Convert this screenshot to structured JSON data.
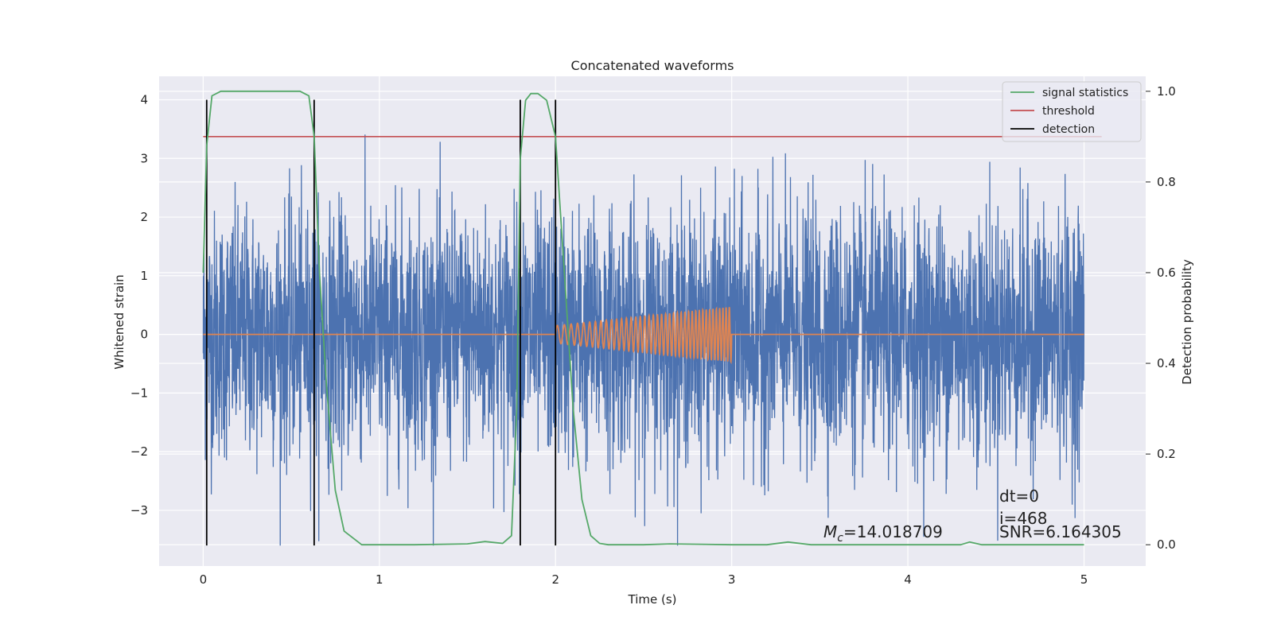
{
  "chart_data": {
    "type": "line",
    "title": "Concatenated waveforms",
    "xlabel": "Time (s)",
    "ylabel": "Whitened strain",
    "ylabel_right": "Detection probability",
    "xlim": [
      -0.25,
      5.35
    ],
    "ylim": [
      -3.95,
      4.4
    ],
    "ylim_right": [
      -0.047,
      1.033
    ],
    "x_ticks": [
      0,
      1,
      2,
      3,
      4,
      5
    ],
    "y_ticks": [
      -3,
      -2,
      -1,
      0,
      1,
      2,
      3,
      4
    ],
    "y_ticks_right": [
      0.0,
      0.2,
      0.4,
      0.6,
      0.8,
      1.0
    ],
    "y_tick_labels": [
      "−3",
      "−2",
      "−1",
      "0",
      "1",
      "2",
      "3",
      "4"
    ],
    "y_tick_labels_right": [
      "0.0",
      "0.2",
      "0.4",
      "0.6",
      "0.8",
      "1.0"
    ],
    "grid": true,
    "legend_position": "top-right",
    "colors": {
      "strain": "#4c72b0",
      "template": "#dd8452",
      "signal_statistics": "#55a868",
      "threshold": "#c44e52",
      "detection": "#000000",
      "background": "#eaeaf2",
      "grid": "#ffffff"
    },
    "strain": {
      "x_range": [
        0,
        5
      ],
      "typical_amplitude": 1.3,
      "max": 3.65,
      "min": -3.6
    },
    "template": {
      "baseline": 0,
      "chirp_start": 2.0,
      "chirp_end": 3.0,
      "amplitude_start": 0.15,
      "amplitude_end": 0.47
    },
    "signal_statistics": {
      "name": "signal statistics",
      "x": [
        0.0,
        0.02,
        0.05,
        0.1,
        0.2,
        0.4,
        0.55,
        0.6,
        0.63,
        0.66,
        0.7,
        0.75,
        0.8,
        0.9,
        1.2,
        1.5,
        1.6,
        1.7,
        1.75,
        1.78,
        1.8,
        1.83,
        1.86,
        1.9,
        1.95,
        2.0,
        2.05,
        2.1,
        2.15,
        2.2,
        2.25,
        2.3,
        2.5,
        2.65,
        3.0,
        3.2,
        3.32,
        3.45,
        4.0,
        4.3,
        4.35,
        4.42,
        5.0
      ],
      "y": [
        0.6,
        0.88,
        0.99,
        1.0,
        1.0,
        1.0,
        1.0,
        0.99,
        0.9,
        0.6,
        0.35,
        0.12,
        0.03,
        0.0,
        0.0,
        0.002,
        0.007,
        0.003,
        0.02,
        0.3,
        0.85,
        0.98,
        0.995,
        0.995,
        0.98,
        0.9,
        0.6,
        0.3,
        0.1,
        0.02,
        0.003,
        0.0,
        0.0,
        0.002,
        0.0,
        0.0,
        0.006,
        0.0,
        0.0,
        0.0,
        0.006,
        0.0,
        0.0
      ]
    },
    "threshold": {
      "name": "threshold",
      "value": 0.9,
      "x_range": [
        0,
        5.1
      ]
    },
    "detection": {
      "name": "detection",
      "times": [
        0.02,
        0.63,
        1.8,
        2.0
      ],
      "y_range": [
        -3.6,
        4.0
      ]
    },
    "annotations": {
      "mc": "=14.018709",
      "dt": "dt=0",
      "i": "i=468",
      "snr": "SNR=6.164305"
    }
  }
}
